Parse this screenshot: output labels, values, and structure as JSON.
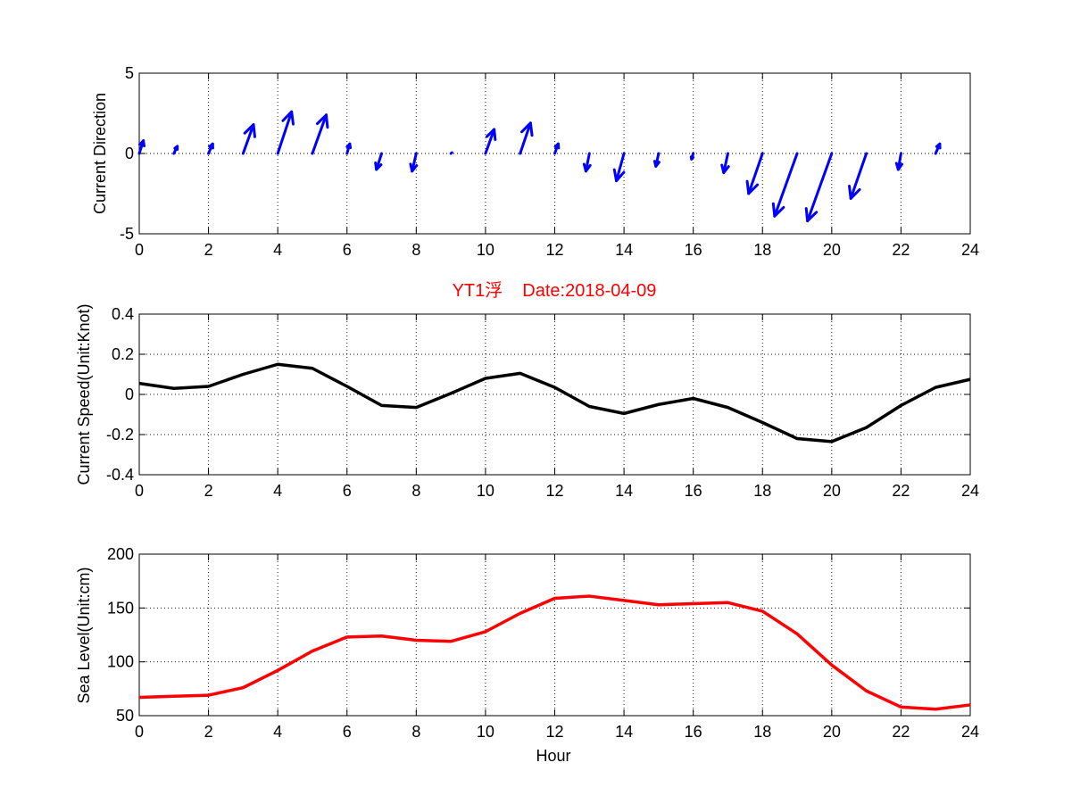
{
  "colors": {
    "direction": "#0000ff",
    "speed": "#000000",
    "sea_level": "#ff0000",
    "title": "#ff0000"
  },
  "chart_data": [
    {
      "type": "quiver",
      "ylabel": "Current Direction",
      "xlim": [
        0,
        24
      ],
      "ylim": [
        -5,
        5
      ],
      "xticks": [
        "0",
        "2",
        "4",
        "6",
        "8",
        "10",
        "12",
        "14",
        "16",
        "18",
        "20",
        "22",
        "24"
      ],
      "yticks": [
        "5",
        "0",
        "-5"
      ],
      "grid": true,
      "vectors": [
        {
          "x": 0,
          "u": 0.12,
          "v": 0.8
        },
        {
          "x": 1,
          "u": 0.1,
          "v": 0.45
        },
        {
          "x": 2,
          "u": 0.12,
          "v": 0.6
        },
        {
          "x": 3,
          "u": 0.3,
          "v": 1.8
        },
        {
          "x": 4,
          "u": 0.4,
          "v": 2.6
        },
        {
          "x": 5,
          "u": 0.4,
          "v": 2.4
        },
        {
          "x": 6,
          "u": 0.08,
          "v": 0.6
        },
        {
          "x": 7,
          "u": -0.15,
          "v": -1.0
        },
        {
          "x": 8,
          "u": -0.12,
          "v": -1.1
        },
        {
          "x": 9,
          "u": 0.03,
          "v": 0.05
        },
        {
          "x": 10,
          "u": 0.25,
          "v": 1.5
        },
        {
          "x": 11,
          "u": 0.3,
          "v": 1.9
        },
        {
          "x": 12,
          "u": 0.1,
          "v": 0.6
        },
        {
          "x": 13,
          "u": -0.1,
          "v": -1.1
        },
        {
          "x": 14,
          "u": -0.22,
          "v": -1.7
        },
        {
          "x": 15,
          "u": -0.08,
          "v": -0.8
        },
        {
          "x": 16,
          "u": -0.05,
          "v": -0.35
        },
        {
          "x": 17,
          "u": -0.12,
          "v": -1.2
        },
        {
          "x": 18,
          "u": -0.4,
          "v": -2.5
        },
        {
          "x": 19,
          "u": -0.65,
          "v": -3.9
        },
        {
          "x": 20,
          "u": -0.7,
          "v": -4.2
        },
        {
          "x": 21,
          "u": -0.45,
          "v": -2.8
        },
        {
          "x": 22,
          "u": -0.08,
          "v": -1.0
        },
        {
          "x": 23,
          "u": 0.12,
          "v": 0.6
        }
      ]
    },
    {
      "type": "line",
      "title_main": "YT1浮",
      "title_date": "Date:2018-04-09",
      "ylabel": "Current Speed(Unit:Knot)",
      "xlim": [
        0,
        24
      ],
      "ylim": [
        -0.4,
        0.4
      ],
      "xticks": [
        "0",
        "2",
        "4",
        "6",
        "8",
        "10",
        "12",
        "14",
        "16",
        "18",
        "20",
        "22",
        "24"
      ],
      "yticks": [
        "0.4",
        "0.2",
        "0",
        "-0.2",
        "-0.4"
      ],
      "grid": true,
      "x": [
        0,
        1,
        2,
        3,
        4,
        5,
        6,
        7,
        8,
        9,
        10,
        11,
        12,
        13,
        14,
        15,
        16,
        17,
        18,
        19,
        20,
        21,
        22,
        23,
        24
      ],
      "y": [
        0.055,
        0.03,
        0.04,
        0.1,
        0.15,
        0.13,
        0.04,
        -0.055,
        -0.065,
        0.005,
        0.08,
        0.105,
        0.035,
        -0.06,
        -0.095,
        -0.05,
        -0.02,
        -0.065,
        -0.14,
        -0.22,
        -0.235,
        -0.165,
        -0.055,
        0.035,
        0.075
      ]
    },
    {
      "type": "line",
      "ylabel": "Sea Level(Unit:cm)",
      "xlabel": "Hour",
      "xlim": [
        0,
        24
      ],
      "ylim": [
        50,
        200
      ],
      "xticks": [
        "0",
        "2",
        "4",
        "6",
        "8",
        "10",
        "12",
        "14",
        "16",
        "18",
        "20",
        "22",
        "24"
      ],
      "yticks": [
        "200",
        "150",
        "100",
        "50"
      ],
      "grid": true,
      "x": [
        0,
        1,
        2,
        3,
        4,
        5,
        6,
        7,
        8,
        9,
        10,
        11,
        12,
        13,
        14,
        15,
        16,
        17,
        18,
        19,
        20,
        21,
        22,
        23,
        24
      ],
      "y": [
        67,
        68,
        69,
        76,
        92,
        110,
        123,
        124,
        120,
        119,
        128,
        145,
        159,
        161,
        157,
        153,
        154,
        155,
        147,
        126,
        97,
        73,
        58,
        56,
        60
      ]
    }
  ]
}
